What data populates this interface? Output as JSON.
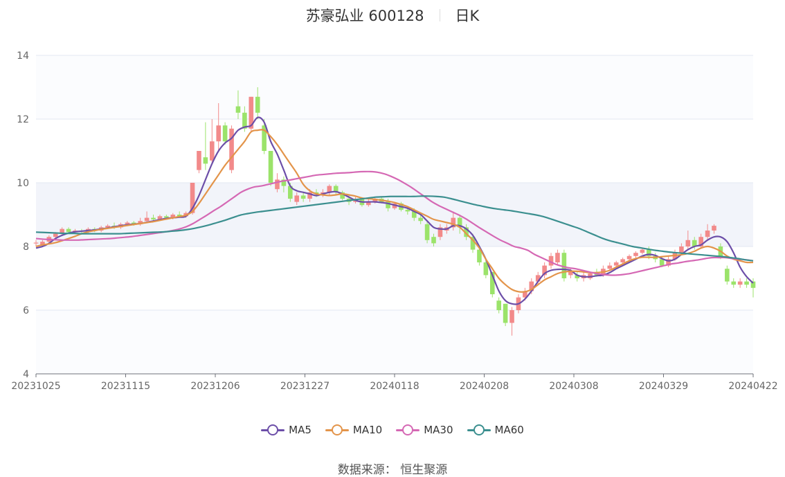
{
  "header": {
    "stock_name_code": "苏豪弘业 600128",
    "period": "日K"
  },
  "source": {
    "text": "数据来源：  恒生聚源"
  },
  "colors": {
    "up": "#f28a8a",
    "down": "#9be36a",
    "ma5": "#6c4ea8",
    "ma10": "#e3944a",
    "ma30": "#d568b4",
    "ma60": "#3b8f8f",
    "band": "#f2f4fa",
    "grid": "#e3e7f2"
  },
  "chart_data": {
    "type": "candlestick",
    "title": "苏豪弘业 600128 日K",
    "ylim": [
      4,
      14
    ],
    "yticks": [
      4,
      6,
      8,
      10,
      12,
      14
    ],
    "xlabels": [
      "20231025",
      "20231115",
      "20231206",
      "20231227",
      "20240118",
      "20240208",
      "20240308",
      "20240329",
      "20240422"
    ],
    "candles": [
      [
        8.1,
        8.12,
        8.0,
        8.2
      ],
      [
        8.05,
        8.15,
        8.0,
        8.2
      ],
      [
        8.15,
        8.3,
        8.1,
        8.35
      ],
      [
        8.3,
        8.4,
        8.25,
        8.45
      ],
      [
        8.4,
        8.55,
        8.35,
        8.6
      ],
      [
        8.55,
        8.45,
        8.4,
        8.6
      ],
      [
        8.45,
        8.5,
        8.4,
        8.55
      ],
      [
        8.5,
        8.48,
        8.4,
        8.55
      ],
      [
        8.45,
        8.55,
        8.4,
        8.6
      ],
      [
        8.55,
        8.5,
        8.45,
        8.6
      ],
      [
        8.5,
        8.6,
        8.45,
        8.65
      ],
      [
        8.6,
        8.65,
        8.55,
        8.7
      ],
      [
        8.65,
        8.6,
        8.55,
        8.75
      ],
      [
        8.6,
        8.7,
        8.55,
        8.75
      ],
      [
        8.7,
        8.75,
        8.65,
        8.8
      ],
      [
        8.75,
        8.7,
        8.65,
        8.8
      ],
      [
        8.7,
        8.8,
        8.65,
        8.9
      ],
      [
        8.8,
        8.9,
        8.75,
        9.1
      ],
      [
        8.9,
        8.85,
        8.8,
        9.0
      ],
      [
        8.85,
        8.95,
        8.8,
        9.0
      ],
      [
        8.95,
        8.9,
        8.85,
        9.0
      ],
      [
        8.9,
        9.0,
        8.85,
        9.05
      ],
      [
        9.0,
        8.95,
        8.9,
        9.1
      ],
      [
        8.95,
        9.05,
        8.9,
        9.1
      ],
      [
        9.05,
        10.0,
        9.0,
        10.0
      ],
      [
        10.4,
        11.0,
        10.3,
        11.0
      ],
      [
        10.8,
        10.6,
        10.4,
        11.9
      ],
      [
        10.7,
        11.3,
        10.6,
        12.0
      ],
      [
        11.3,
        11.8,
        11.0,
        12.5
      ],
      [
        11.8,
        11.3,
        11.2,
        11.9
      ],
      [
        10.4,
        11.7,
        10.3,
        11.8
      ],
      [
        12.4,
        12.2,
        12.0,
        12.9
      ],
      [
        12.2,
        11.7,
        11.6,
        12.4
      ],
      [
        11.7,
        12.7,
        11.6,
        12.7
      ],
      [
        12.7,
        12.2,
        12.0,
        13.0
      ],
      [
        11.8,
        11.0,
        10.9,
        12.0
      ],
      [
        11.0,
        10.0,
        9.9,
        11.0
      ],
      [
        9.8,
        10.1,
        9.7,
        10.3
      ],
      [
        10.1,
        9.9,
        9.7,
        10.2
      ],
      [
        9.9,
        9.5,
        9.4,
        10.0
      ],
      [
        9.4,
        9.6,
        9.3,
        9.7
      ],
      [
        9.6,
        9.5,
        9.4,
        9.7
      ],
      [
        9.5,
        9.7,
        9.4,
        9.8
      ],
      [
        9.7,
        9.65,
        9.55,
        9.8
      ],
      [
        9.65,
        9.7,
        9.55,
        9.8
      ],
      [
        9.7,
        9.9,
        9.6,
        9.95
      ],
      [
        9.9,
        9.7,
        9.6,
        9.95
      ],
      [
        9.7,
        9.5,
        9.45,
        9.75
      ],
      [
        9.5,
        9.4,
        9.3,
        9.6
      ],
      [
        9.4,
        9.5,
        9.35,
        9.55
      ],
      [
        9.5,
        9.3,
        9.25,
        9.55
      ],
      [
        9.3,
        9.4,
        9.25,
        9.5
      ],
      [
        9.4,
        9.5,
        9.35,
        9.55
      ],
      [
        9.5,
        9.4,
        9.35,
        9.55
      ],
      [
        9.4,
        9.2,
        9.1,
        9.5
      ],
      [
        9.2,
        9.35,
        9.15,
        9.4
      ],
      [
        9.35,
        9.15,
        9.1,
        9.4
      ],
      [
        9.15,
        9.1,
        9.0,
        9.25
      ],
      [
        9.1,
        8.9,
        8.8,
        9.2
      ],
      [
        8.9,
        8.8,
        8.7,
        9.0
      ],
      [
        8.7,
        8.2,
        8.1,
        8.8
      ],
      [
        8.3,
        8.1,
        8.0,
        8.4
      ],
      [
        8.3,
        8.6,
        8.2,
        8.7
      ],
      [
        8.5,
        8.6,
        8.4,
        8.7
      ],
      [
        8.6,
        8.9,
        8.5,
        9.1
      ],
      [
        8.9,
        8.6,
        8.4,
        9.0
      ],
      [
        8.6,
        8.3,
        8.2,
        8.7
      ],
      [
        8.3,
        7.9,
        7.8,
        8.4
      ],
      [
        7.9,
        7.5,
        7.4,
        8.0
      ],
      [
        7.5,
        7.1,
        7.0,
        7.6
      ],
      [
        7.2,
        6.5,
        6.4,
        7.2
      ],
      [
        6.3,
        6.0,
        5.9,
        6.4
      ],
      [
        6.2,
        5.6,
        5.5,
        6.2
      ],
      [
        5.6,
        6.0,
        5.2,
        6.1
      ],
      [
        6.0,
        6.4,
        5.9,
        6.5
      ],
      [
        6.4,
        6.6,
        6.3,
        6.7
      ],
      [
        6.6,
        6.9,
        6.5,
        7.0
      ],
      [
        6.9,
        7.1,
        6.8,
        7.2
      ],
      [
        7.1,
        7.4,
        7.0,
        7.5
      ],
      [
        7.4,
        7.7,
        7.3,
        7.8
      ],
      [
        7.5,
        7.8,
        7.4,
        7.9
      ],
      [
        7.8,
        7.0,
        6.9,
        7.9
      ],
      [
        7.1,
        7.2,
        7.0,
        7.3
      ],
      [
        7.1,
        7.0,
        6.9,
        7.2
      ],
      [
        7.0,
        7.1,
        6.9,
        7.2
      ],
      [
        7.0,
        7.15,
        6.95,
        7.2
      ],
      [
        7.15,
        7.1,
        7.05,
        7.3
      ],
      [
        7.1,
        7.3,
        7.05,
        7.4
      ],
      [
        7.3,
        7.4,
        7.25,
        7.5
      ],
      [
        7.4,
        7.5,
        7.3,
        7.55
      ],
      [
        7.5,
        7.6,
        7.45,
        7.65
      ],
      [
        7.6,
        7.7,
        7.55,
        7.75
      ],
      [
        7.7,
        7.8,
        7.6,
        7.85
      ],
      [
        7.8,
        7.9,
        7.75,
        7.95
      ],
      [
        7.9,
        7.7,
        7.6,
        8.0
      ],
      [
        7.7,
        7.6,
        7.5,
        7.8
      ],
      [
        7.6,
        7.4,
        7.35,
        7.7
      ],
      [
        7.4,
        7.6,
        7.35,
        7.7
      ],
      [
        7.6,
        7.8,
        7.55,
        7.9
      ],
      [
        7.8,
        8.0,
        7.75,
        8.1
      ],
      [
        8.0,
        8.2,
        7.9,
        8.5
      ],
      [
        8.2,
        8.0,
        7.9,
        8.3
      ],
      [
        8.0,
        8.3,
        7.95,
        8.4
      ],
      [
        8.3,
        8.5,
        8.2,
        8.7
      ],
      [
        8.5,
        8.65,
        8.4,
        8.7
      ],
      [
        8.0,
        7.7,
        7.6,
        8.1
      ],
      [
        7.3,
        6.9,
        6.8,
        7.4
      ],
      [
        6.9,
        6.8,
        6.7,
        7.0
      ],
      [
        6.8,
        6.9,
        6.7,
        7.0
      ],
      [
        6.9,
        6.8,
        6.7,
        7.0
      ],
      [
        6.9,
        6.7,
        6.4,
        7.0
      ]
    ],
    "series": [
      {
        "name": "MA5",
        "values": [
          7.95,
          8.0,
          8.1,
          8.25,
          8.35,
          8.42,
          8.46,
          8.48,
          8.5,
          8.52,
          8.55,
          8.58,
          8.62,
          8.65,
          8.68,
          8.7,
          8.72,
          8.76,
          8.8,
          8.84,
          8.88,
          8.9,
          8.92,
          8.95,
          9.2,
          9.6,
          10.1,
          10.6,
          11.0,
          11.25,
          11.4,
          11.65,
          11.75,
          11.8,
          12.05,
          11.9,
          11.3,
          10.9,
          10.4,
          9.9,
          9.75,
          9.7,
          9.65,
          9.6,
          9.65,
          9.7,
          9.72,
          9.65,
          9.55,
          9.45,
          9.4,
          9.4,
          9.4,
          9.38,
          9.35,
          9.3,
          9.25,
          9.2,
          9.1,
          9.0,
          8.8,
          8.6,
          8.55,
          8.55,
          8.65,
          8.65,
          8.55,
          8.35,
          8.0,
          7.6,
          7.1,
          6.6,
          6.3,
          6.2,
          6.2,
          6.35,
          6.6,
          6.9,
          7.15,
          7.25,
          7.28,
          7.28,
          7.25,
          7.1,
          7.05,
          7.05,
          7.08,
          7.1,
          7.18,
          7.3,
          7.4,
          7.5,
          7.6,
          7.7,
          7.75,
          7.72,
          7.62,
          7.55,
          7.6,
          7.75,
          7.9,
          8.0,
          8.05,
          8.2,
          8.3,
          8.3,
          8.15,
          7.8,
          7.35,
          7.05,
          6.85
        ]
      },
      {
        "name": "MA10",
        "values": [
          8.0,
          8.05,
          8.08,
          8.12,
          8.18,
          8.25,
          8.32,
          8.4,
          8.46,
          8.5,
          8.54,
          8.57,
          8.6,
          8.63,
          8.66,
          8.69,
          8.72,
          8.75,
          8.78,
          8.82,
          8.86,
          8.9,
          8.94,
          8.98,
          9.1,
          9.35,
          9.65,
          9.95,
          10.25,
          10.55,
          10.8,
          11.05,
          11.3,
          11.6,
          11.65,
          11.65,
          11.45,
          11.2,
          10.9,
          10.6,
          10.3,
          9.95,
          9.75,
          9.65,
          9.62,
          9.6,
          9.62,
          9.65,
          9.62,
          9.58,
          9.52,
          9.5,
          9.48,
          9.45,
          9.42,
          9.38,
          9.32,
          9.25,
          9.15,
          9.05,
          8.95,
          8.85,
          8.8,
          8.75,
          8.7,
          8.6,
          8.4,
          8.2,
          7.95,
          7.6,
          7.3,
          7.0,
          6.8,
          6.65,
          6.58,
          6.58,
          6.65,
          6.8,
          6.95,
          7.05,
          7.15,
          7.2,
          7.22,
          7.22,
          7.2,
          7.18,
          7.18,
          7.2,
          7.25,
          7.35,
          7.45,
          7.55,
          7.62,
          7.66,
          7.66,
          7.66,
          7.68,
          7.7,
          7.72,
          7.74,
          7.78,
          7.85,
          7.95,
          8.0,
          7.95,
          7.85,
          7.7,
          7.6,
          7.55,
          7.5,
          7.5
        ]
      },
      {
        "name": "MA30",
        "values": [
          8.25,
          8.23,
          8.22,
          8.21,
          8.2,
          8.2,
          8.2,
          8.21,
          8.22,
          8.23,
          8.24,
          8.25,
          8.27,
          8.29,
          8.31,
          8.34,
          8.37,
          8.4,
          8.43,
          8.46,
          8.5,
          8.55,
          8.62,
          8.72,
          8.85,
          8.98,
          9.12,
          9.25,
          9.4,
          9.55,
          9.7,
          9.8,
          9.87,
          9.9,
          9.95,
          10.0,
          10.05,
          10.08,
          10.12,
          10.16,
          10.2,
          10.24,
          10.26,
          10.28,
          10.3,
          10.31,
          10.32,
          10.34,
          10.35,
          10.35,
          10.33,
          10.28,
          10.2,
          10.1,
          9.98,
          9.85,
          9.7,
          9.55,
          9.4,
          9.28,
          9.18,
          9.08,
          8.98,
          8.86,
          8.72,
          8.58,
          8.45,
          8.32,
          8.2,
          8.1,
          8.0,
          7.95,
          7.88,
          7.75,
          7.65,
          7.55,
          7.45,
          7.38,
          7.33,
          7.3,
          7.25,
          7.2,
          7.15,
          7.12,
          7.1,
          7.1,
          7.12,
          7.15,
          7.2,
          7.25,
          7.3,
          7.35,
          7.4,
          7.45,
          7.48,
          7.52,
          7.55,
          7.58,
          7.62,
          7.65,
          7.65,
          7.65,
          7.62,
          7.6,
          7.58,
          7.55
        ]
      },
      {
        "name": "MA60",
        "values": [
          8.45,
          8.44,
          8.43,
          8.42,
          8.41,
          8.41,
          8.4,
          8.4,
          8.4,
          8.4,
          8.4,
          8.4,
          8.41,
          8.42,
          8.43,
          8.44,
          8.45,
          8.46,
          8.48,
          8.5,
          8.53,
          8.57,
          8.62,
          8.68,
          8.75,
          8.82,
          8.9,
          8.98,
          9.03,
          9.07,
          9.1,
          9.13,
          9.16,
          9.19,
          9.22,
          9.25,
          9.28,
          9.31,
          9.34,
          9.37,
          9.4,
          9.43,
          9.46,
          9.49,
          9.52,
          9.55,
          9.56,
          9.57,
          9.57,
          9.57,
          9.57,
          9.58,
          9.58,
          9.57,
          9.55,
          9.5,
          9.44,
          9.38,
          9.32,
          9.27,
          9.22,
          9.18,
          9.15,
          9.12,
          9.08,
          9.04,
          9.0,
          8.95,
          8.88,
          8.8,
          8.72,
          8.64,
          8.56,
          8.46,
          8.36,
          8.26,
          8.18,
          8.12,
          8.06,
          8.0,
          7.96,
          7.92,
          7.88,
          7.85,
          7.82,
          7.8,
          7.78,
          7.76,
          7.74,
          7.72,
          7.7,
          7.68,
          7.65,
          7.62,
          7.58,
          7.55
        ]
      }
    ]
  }
}
